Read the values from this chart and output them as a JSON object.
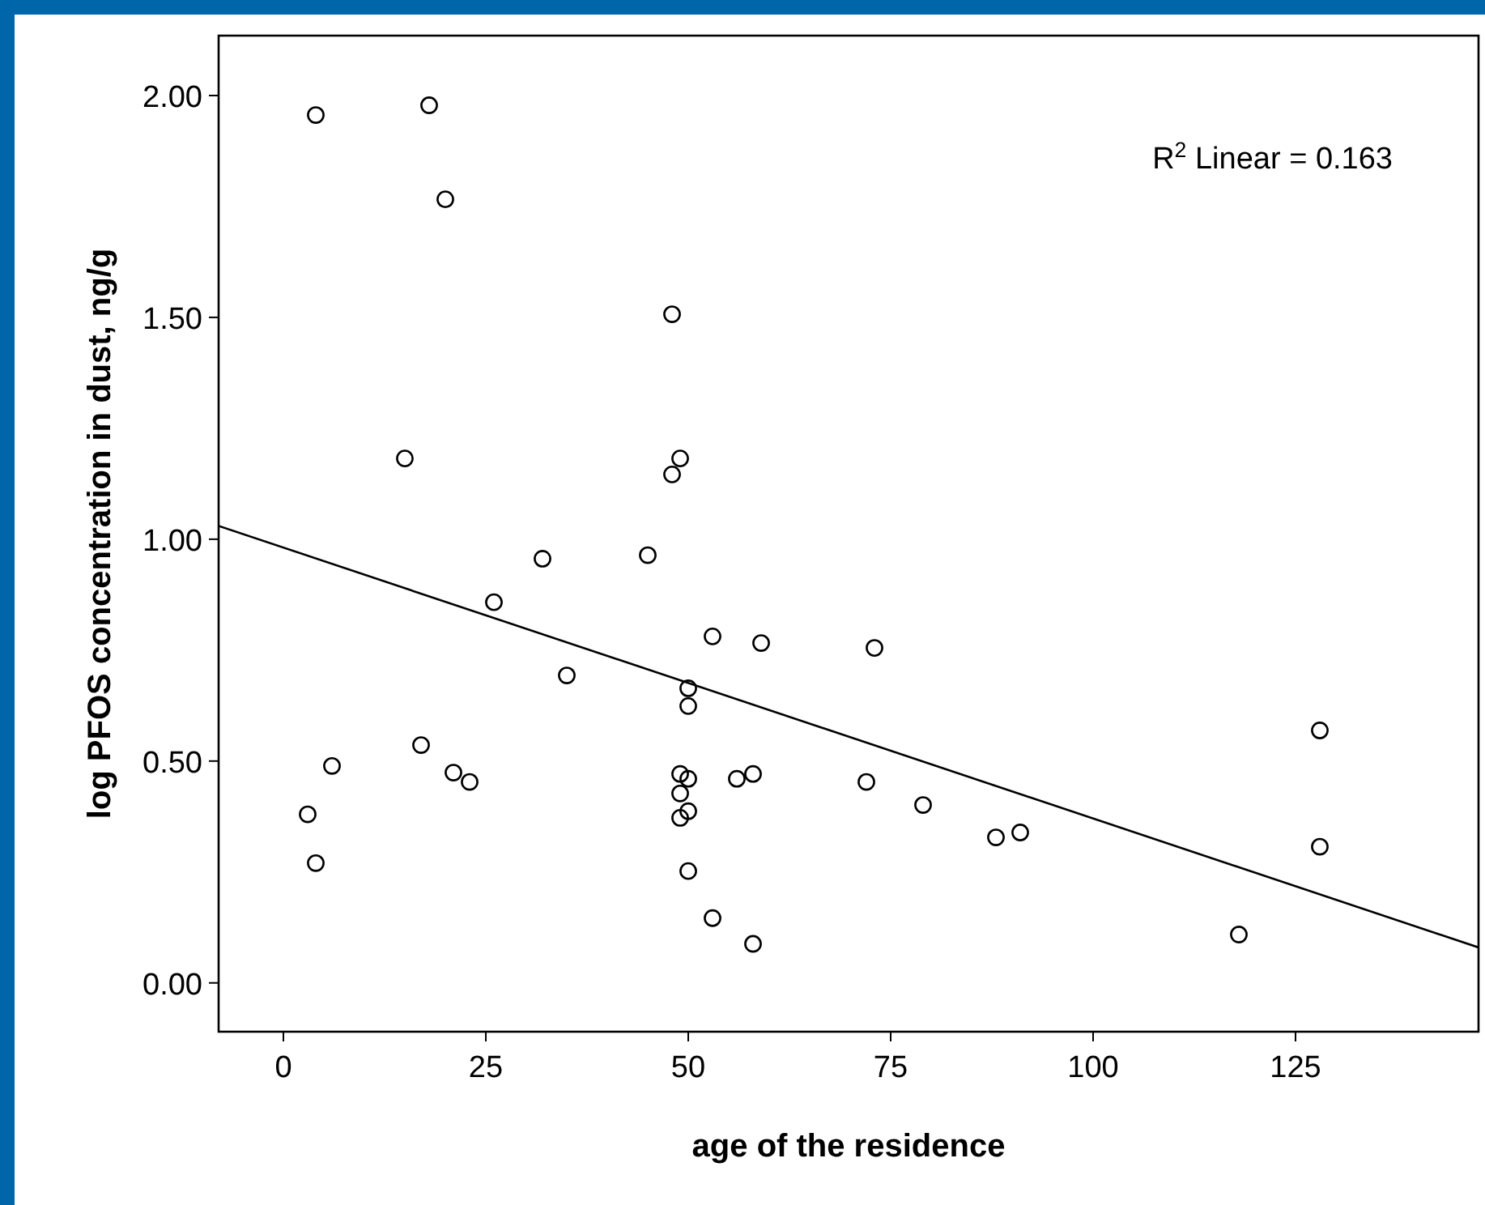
{
  "chart_data": {
    "type": "scatter",
    "xlabel": "age of the residence",
    "ylabel": "log PFOS concentration in dust, ng/g",
    "xlim": [
      -8,
      147.6
    ],
    "xticks": [
      0,
      25,
      50,
      75,
      100,
      125
    ],
    "ylim": [
      -0.11,
      2.135
    ],
    "yticks": [
      {
        "value": 0,
        "label": "0.00"
      },
      {
        "value": 0.5,
        "label": "0.50"
      },
      {
        "value": 1,
        "label": "1.00"
      },
      {
        "value": 1.5,
        "label": "1.50"
      },
      {
        "value": 2,
        "label": "2.00"
      }
    ],
    "grid": false,
    "annotations": [
      "R$^{2}$ Linear = 0.163"
    ],
    "series": [
      {
        "color": "#000000",
        "marker": "circle",
        "x": [
          4,
          18,
          20,
          48,
          15,
          49,
          48,
          32,
          45,
          26,
          35,
          53,
          59,
          73,
          50,
          50,
          6,
          17,
          21,
          23,
          3,
          4,
          49,
          50,
          49,
          50,
          49,
          50,
          56,
          58,
          53,
          58,
          72,
          79,
          88,
          91,
          118,
          128,
          128
        ],
        "values": [
          1.956,
          1.978,
          1.766,
          1.507,
          1.182,
          1.182,
          1.146,
          0.956,
          0.964,
          0.858,
          0.693,
          0.781,
          0.766,
          0.755,
          0.664,
          0.624,
          0.489,
          0.536,
          0.474,
          0.453,
          0.38,
          0.27,
          0.471,
          0.46,
          0.427,
          0.387,
          0.372,
          0.252,
          0.46,
          0.471,
          0.146,
          0.088,
          0.453,
          0.401,
          0.328,
          0.339,
          0.109,
          0.569,
          0.307
        ]
      },
      {
        "type": "line",
        "color": "#000000",
        "marker": "none",
        "x": [
          -8,
          147.6
        ],
        "values": [
          1.03,
          0.08
        ]
      }
    ]
  }
}
